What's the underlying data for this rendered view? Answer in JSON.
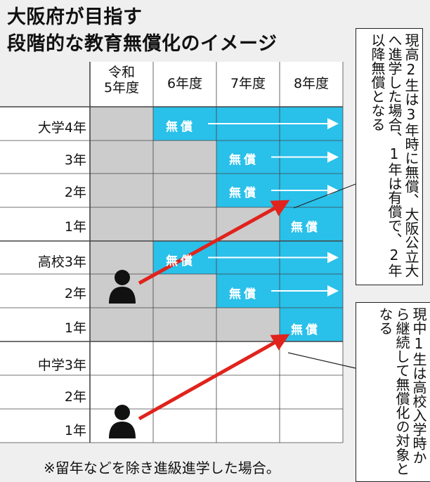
{
  "title": {
    "line1": "大阪府が目指す",
    "line2": "段階的な教育無償化のイメージ"
  },
  "columns": [
    {
      "line1": "令和",
      "line2": "5年度"
    },
    {
      "line1": "6年度"
    },
    {
      "line1": "7年度"
    },
    {
      "line1": "8年度"
    }
  ],
  "rows": [
    "大学4年",
    "3年",
    "2年",
    "1年",
    "高校3年",
    "2年",
    "1年",
    "中学3年",
    "2年",
    "1年"
  ],
  "free_label": "無償",
  "free_cells": [
    {
      "row": 0,
      "col": 1
    },
    {
      "row": 1,
      "col": 2
    },
    {
      "row": 2,
      "col": 2
    },
    {
      "row": 3,
      "col": 3
    },
    {
      "row": 4,
      "col": 1
    },
    {
      "row": 5,
      "col": 2
    },
    {
      "row": 6,
      "col": 3
    }
  ],
  "notes": {
    "note1": "現高2生は3年時に無償、大阪公立大へ進学した場合、1年は有償で、2年以降無償となる",
    "note2": "現中1生は高校入学時から継続して無償化の対象となる"
  },
  "footnote": "※留年などを除き進級進学した場合。",
  "colors": {
    "free": "#29c0ea",
    "gray": "#cccccc",
    "white": "#ffffff",
    "arrow": "#e0231c",
    "person": "#111111"
  }
}
